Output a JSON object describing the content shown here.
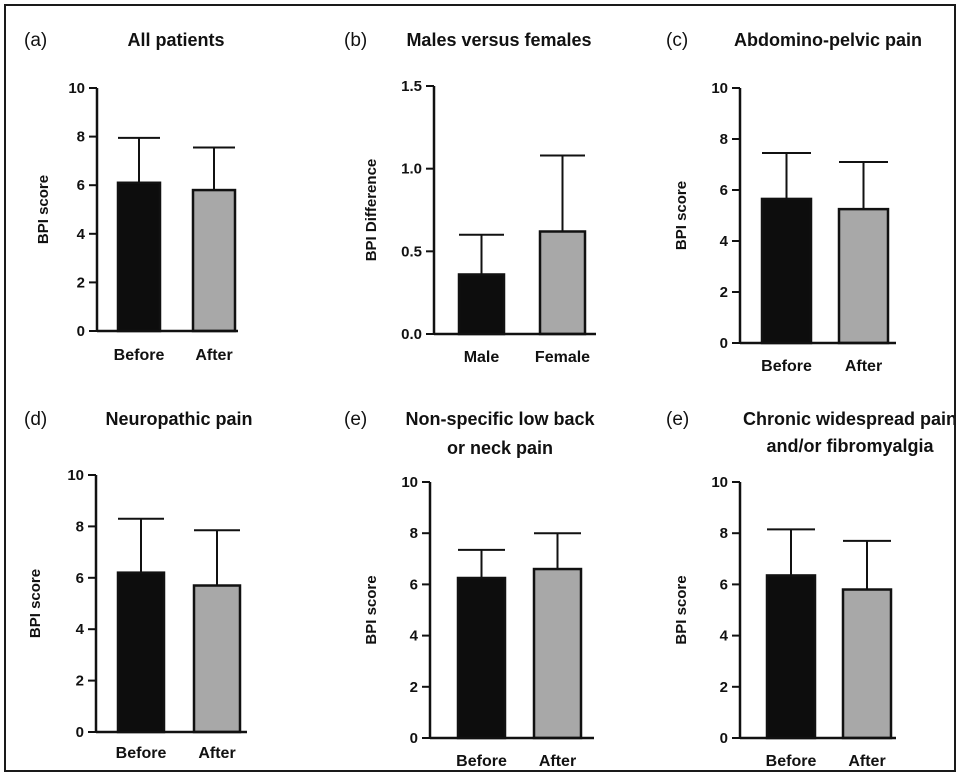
{
  "figure": {
    "panels": [
      {
        "letter": "(a)",
        "title_lines": [
          "All patients"
        ],
        "chart_data": {
          "type": "bar",
          "categories": [
            "Before",
            "After"
          ],
          "values": [
            6.1,
            5.8
          ],
          "errors": [
            1.85,
            1.75
          ],
          "ylabel": "BPI score",
          "ylim": [
            0,
            10
          ],
          "yticks": [
            0,
            2,
            4,
            6,
            8,
            10
          ],
          "ytick_labels": [
            "0",
            "2",
            "4",
            "6",
            "8",
            "10"
          ],
          "bar_colors": [
            "#0d0d0d",
            "#a8a8a8"
          ]
        }
      },
      {
        "letter": "(b)",
        "title_lines": [
          "Males versus females"
        ],
        "chart_data": {
          "type": "bar",
          "categories": [
            "Male",
            "Female"
          ],
          "values": [
            0.36,
            0.62
          ],
          "errors": [
            0.24,
            0.46
          ],
          "ylabel": "BPI Difference",
          "ylim": [
            0,
            1.5
          ],
          "yticks": [
            0,
            0.5,
            1.0,
            1.5
          ],
          "ytick_labels": [
            "0.0",
            "0.5",
            "1.0",
            "1.5"
          ],
          "bar_colors": [
            "#0d0d0d",
            "#a8a8a8"
          ]
        }
      },
      {
        "letter": "(c)",
        "title_lines": [
          "Abdomino-pelvic pain"
        ],
        "chart_data": {
          "type": "bar",
          "categories": [
            "Before",
            "After"
          ],
          "values": [
            5.65,
            5.25
          ],
          "errors": [
            1.8,
            1.85
          ],
          "ylabel": "BPI score",
          "ylim": [
            0,
            10
          ],
          "yticks": [
            0,
            2,
            4,
            6,
            8,
            10
          ],
          "ytick_labels": [
            "0",
            "2",
            "4",
            "6",
            "8",
            "10"
          ],
          "bar_colors": [
            "#0d0d0d",
            "#a8a8a8"
          ]
        }
      },
      {
        "letter": "(d)",
        "title_lines": [
          "Neuropathic pain"
        ],
        "chart_data": {
          "type": "bar",
          "categories": [
            "Before",
            "After"
          ],
          "values": [
            6.2,
            5.7
          ],
          "errors": [
            2.1,
            2.15
          ],
          "ylabel": "BPI score",
          "ylim": [
            0,
            10
          ],
          "yticks": [
            0,
            2,
            4,
            6,
            8,
            10
          ],
          "ytick_labels": [
            "0",
            "2",
            "4",
            "6",
            "8",
            "10"
          ],
          "bar_colors": [
            "#0d0d0d",
            "#a8a8a8"
          ]
        }
      },
      {
        "letter": "(e)",
        "title_lines": [
          "Non-specific low back",
          "or neck pain"
        ],
        "chart_data": {
          "type": "bar",
          "categories": [
            "Before",
            "After"
          ],
          "values": [
            6.25,
            6.6
          ],
          "errors": [
            1.1,
            1.4
          ],
          "ylabel": "BPI score",
          "ylim": [
            0,
            10
          ],
          "yticks": [
            0,
            2,
            4,
            6,
            8,
            10
          ],
          "ytick_labels": [
            "0",
            "2",
            "4",
            "6",
            "8",
            "10"
          ],
          "bar_colors": [
            "#0d0d0d",
            "#a8a8a8"
          ]
        }
      },
      {
        "letter": "(e)",
        "title_lines": [
          "Chronic widespread pain",
          "and/or fibromyalgia"
        ],
        "chart_data": {
          "type": "bar",
          "categories": [
            "Before",
            "After"
          ],
          "values": [
            6.35,
            5.8
          ],
          "errors": [
            1.8,
            1.9
          ],
          "ylabel": "BPI score",
          "ylim": [
            0,
            10
          ],
          "yticks": [
            0,
            2,
            4,
            6,
            8,
            10
          ],
          "ytick_labels": [
            "0",
            "2",
            "4",
            "6",
            "8",
            "10"
          ],
          "bar_colors": [
            "#0d0d0d",
            "#a8a8a8"
          ]
        }
      }
    ]
  }
}
